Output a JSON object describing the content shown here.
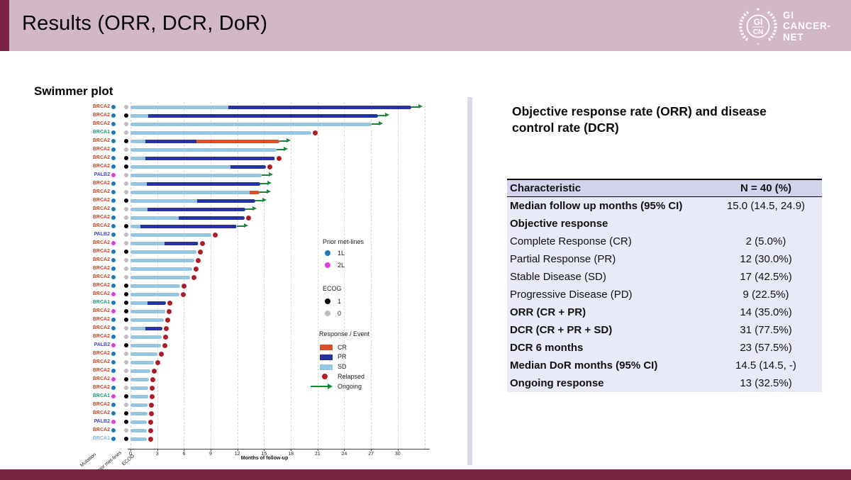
{
  "header": {
    "title": "Results (ORR, DCR, DoR)",
    "logo": {
      "monogram_top": "GI",
      "monogram_bottom": "CN",
      "name_lines": [
        "GI",
        "CANCER-",
        "NET"
      ]
    }
  },
  "swimmer": {
    "section_title": "Swimmer plot",
    "axis_label": "Months of follow-up",
    "column_headers": [
      "Mutation",
      "Prior met-lines",
      "ECOG"
    ],
    "legend": {
      "prior_title": "Prior met-lines",
      "prior_items": [
        {
          "label": "1L",
          "color": "#1f77b4"
        },
        {
          "label": "2L",
          "color": "#e33de3"
        }
      ],
      "ecog_title": "ECOG",
      "ecog_items": [
        {
          "label": "1",
          "color": "#000000"
        },
        {
          "label": "0",
          "color": "#bfbfbf"
        }
      ],
      "response_title": "Response / Event",
      "response_items": [
        {
          "label": "CR",
          "shape": "swatch",
          "color": "#d85128"
        },
        {
          "label": "PR",
          "shape": "swatch",
          "color": "#28329e"
        },
        {
          "label": "SD",
          "shape": "swatch",
          "color": "#95c5e1"
        },
        {
          "label": "Relapsed",
          "shape": "dot",
          "color": "#ab1f26"
        },
        {
          "label": "Ongoing",
          "shape": "arrow",
          "color": "#168a36"
        }
      ]
    }
  },
  "chart_data": {
    "type": "bar",
    "variant": "swimmer-plot",
    "title": "Swimmer plot",
    "xlabel": "Months of follow-up",
    "x_ticks": [
      0,
      3,
      6,
      9,
      12,
      15,
      18,
      21,
      24,
      27,
      30
    ],
    "xlim": [
      0,
      33.5
    ],
    "grid": "dashed-vertical",
    "n_patients": 40,
    "patients": [
      {
        "mutation": "BRCA2",
        "prior": "1L",
        "ecog": "0",
        "segments": [
          {
            "response": "SD",
            "end": 11.0
          },
          {
            "response": "PR",
            "end": 31.5
          }
        ],
        "event": "ongoing"
      },
      {
        "mutation": "BRCA2",
        "prior": "1L",
        "ecog": "1",
        "segments": [
          {
            "response": "SD",
            "end": 2.0
          },
          {
            "response": "PR",
            "end": 27.8
          }
        ],
        "event": "ongoing"
      },
      {
        "mutation": "BRCA2",
        "prior": "1L",
        "ecog": "0",
        "segments": [
          {
            "response": "SD",
            "end": 27.1
          }
        ],
        "event": "ongoing"
      },
      {
        "mutation": "BRCA1",
        "prior": "1L",
        "ecog": "0",
        "segments": [
          {
            "response": "SD",
            "end": 20.3
          }
        ],
        "event": "relapsed"
      },
      {
        "mutation": "BRCA2",
        "prior": "1L",
        "ecog": "1",
        "segments": [
          {
            "response": "SD",
            "end": 1.7
          },
          {
            "response": "PR",
            "end": 7.4
          },
          {
            "response": "CR",
            "end": 16.7
          }
        ],
        "event": "ongoing"
      },
      {
        "mutation": "BRCA2",
        "prior": "1L",
        "ecog": "0",
        "segments": [
          {
            "response": "SD",
            "end": 16.4
          }
        ],
        "event": "ongoing"
      },
      {
        "mutation": "BRCA2",
        "prior": "1L",
        "ecog": "1",
        "segments": [
          {
            "response": "SD",
            "end": 1.7
          },
          {
            "response": "PR",
            "end": 16.2
          }
        ],
        "event": "relapsed"
      },
      {
        "mutation": "BRCA2",
        "prior": "1L",
        "ecog": "1",
        "segments": [
          {
            "response": "SD",
            "end": 11.2
          },
          {
            "response": "PR",
            "end": 15.2
          }
        ],
        "event": "relapsed"
      },
      {
        "mutation": "PALB2",
        "prior": "2L",
        "ecog": "0",
        "segments": [
          {
            "response": "SD",
            "end": 14.7
          }
        ],
        "event": "ongoing"
      },
      {
        "mutation": "BRCA2",
        "prior": "1L",
        "ecog": "0",
        "segments": [
          {
            "response": "SD",
            "end": 1.8
          },
          {
            "response": "PR",
            "end": 14.6
          }
        ],
        "event": "ongoing"
      },
      {
        "mutation": "BRCA2",
        "prior": "1L",
        "ecog": "0",
        "segments": [
          {
            "response": "SD",
            "end": 13.4
          },
          {
            "response": "CR",
            "end": 14.5
          }
        ],
        "event": "ongoing"
      },
      {
        "mutation": "BRCA2",
        "prior": "1L",
        "ecog": "1",
        "segments": [
          {
            "response": "SD",
            "end": 7.5
          },
          {
            "response": "PR",
            "end": 14.0
          }
        ],
        "event": "ongoing"
      },
      {
        "mutation": "BRCA2",
        "prior": "1L",
        "ecog": "0",
        "segments": [
          {
            "response": "SD",
            "end": 1.9
          },
          {
            "response": "PR",
            "end": 12.9
          }
        ],
        "event": "ongoing"
      },
      {
        "mutation": "BRCA2",
        "prior": "1L",
        "ecog": "0",
        "segments": [
          {
            "response": "SD",
            "end": 5.4
          },
          {
            "response": "PR",
            "end": 12.8
          }
        ],
        "event": "relapsed"
      },
      {
        "mutation": "BRCA2",
        "prior": "1L",
        "ecog": "1",
        "segments": [
          {
            "response": "SD",
            "end": 1.1
          },
          {
            "response": "PR",
            "end": 11.9
          }
        ],
        "event": "ongoing"
      },
      {
        "mutation": "PALB2",
        "prior": "1L",
        "ecog": "0",
        "segments": [
          {
            "response": "SD",
            "end": 9.1
          }
        ],
        "event": "relapsed"
      },
      {
        "mutation": "BRCA2",
        "prior": "2L",
        "ecog": "0",
        "segments": [
          {
            "response": "SD",
            "end": 3.8
          },
          {
            "response": "PR",
            "end": 7.6
          }
        ],
        "event": "relapsed"
      },
      {
        "mutation": "BRCA2",
        "prior": "1L",
        "ecog": "1",
        "segments": [
          {
            "response": "SD",
            "end": 7.4
          }
        ],
        "event": "relapsed"
      },
      {
        "mutation": "BRCA2",
        "prior": "1L",
        "ecog": "0",
        "segments": [
          {
            "response": "SD",
            "end": 7.2
          }
        ],
        "event": "relapsed"
      },
      {
        "mutation": "BRCA2",
        "prior": "1L",
        "ecog": "0",
        "segments": [
          {
            "response": "SD",
            "end": 6.9
          }
        ],
        "event": "relapsed"
      },
      {
        "mutation": "BRCA2",
        "prior": "1L",
        "ecog": "0",
        "segments": [
          {
            "response": "SD",
            "end": 6.7
          }
        ],
        "event": "relapsed"
      },
      {
        "mutation": "BRCA2",
        "prior": "1L",
        "ecog": "1",
        "segments": [
          {
            "response": "SD",
            "end": 5.6
          }
        ],
        "event": "relapsed"
      },
      {
        "mutation": "BRCA2",
        "prior": "2L",
        "ecog": "1",
        "segments": [
          {
            "response": "SD",
            "end": 5.5
          }
        ],
        "event": "relapsed"
      },
      {
        "mutation": "BRCA1",
        "prior": "1L",
        "ecog": "1",
        "segments": [
          {
            "response": "SD",
            "end": 1.9
          },
          {
            "response": "PR",
            "end": 4.0
          }
        ],
        "event": "relapsed"
      },
      {
        "mutation": "BRCA2",
        "prior": "2L",
        "ecog": "1",
        "segments": [
          {
            "response": "SD",
            "end": 3.9
          }
        ],
        "event": "relapsed"
      },
      {
        "mutation": "BRCA2",
        "prior": "1L",
        "ecog": "1",
        "segments": [
          {
            "response": "SD",
            "end": 3.7
          }
        ],
        "event": "relapsed"
      },
      {
        "mutation": "BRCA2",
        "prior": "1L",
        "ecog": "0",
        "segments": [
          {
            "response": "SD",
            "end": 1.7
          },
          {
            "response": "PR",
            "end": 3.6
          }
        ],
        "event": "relapsed"
      },
      {
        "mutation": "BRCA2",
        "prior": "1L",
        "ecog": "0",
        "segments": [
          {
            "response": "SD",
            "end": 3.5
          }
        ],
        "event": "relapsed"
      },
      {
        "mutation": "PALB2",
        "prior": "2L",
        "ecog": "1",
        "segments": [
          {
            "response": "SD",
            "end": 3.4
          }
        ],
        "event": "relapsed"
      },
      {
        "mutation": "BRCA2",
        "prior": "1L",
        "ecog": "0",
        "segments": [
          {
            "response": "SD",
            "end": 3.0
          }
        ],
        "event": "relapsed"
      },
      {
        "mutation": "BRCA2",
        "prior": "1L",
        "ecog": "0",
        "segments": [
          {
            "response": "SD",
            "end": 2.6
          }
        ],
        "event": "relapsed"
      },
      {
        "mutation": "BRCA2",
        "prior": "1L",
        "ecog": "0",
        "segments": [
          {
            "response": "SD",
            "end": 2.2
          }
        ],
        "event": "relapsed"
      },
      {
        "mutation": "BRCA2",
        "prior": "2L",
        "ecog": "1",
        "segments": [
          {
            "response": "SD",
            "end": 2.1
          }
        ],
        "event": "relapsed"
      },
      {
        "mutation": "BRCA2",
        "prior": "1L",
        "ecog": "0",
        "segments": [
          {
            "response": "SD",
            "end": 2.0
          }
        ],
        "event": "relapsed"
      },
      {
        "mutation": "BRCA1",
        "prior": "2L",
        "ecog": "1",
        "segments": [
          {
            "response": "SD",
            "end": 2.0
          }
        ],
        "event": "relapsed"
      },
      {
        "mutation": "BRCA2",
        "prior": "1L",
        "ecog": "0",
        "segments": [
          {
            "response": "SD",
            "end": 1.9
          }
        ],
        "event": "relapsed"
      },
      {
        "mutation": "BRCA2",
        "prior": "1L",
        "ecog": "1",
        "segments": [
          {
            "response": "SD",
            "end": 1.9
          }
        ],
        "event": "relapsed"
      },
      {
        "mutation": "PALB2",
        "prior": "2L",
        "ecog": "1",
        "segments": [
          {
            "response": "SD",
            "end": 1.8
          }
        ],
        "event": "relapsed"
      },
      {
        "mutation": "BRCA2",
        "prior": "1L",
        "ecog": "0",
        "segments": [
          {
            "response": "SD",
            "end": 1.8
          }
        ],
        "event": "relapsed"
      },
      {
        "mutation": "BRCA1",
        "muted": true,
        "prior": "1L",
        "ecog": "1",
        "segments": [
          {
            "response": "SD",
            "end": 1.8
          }
        ],
        "event": "relapsed"
      }
    ]
  },
  "panel": {
    "heading": "Objective response rate (ORR) and disease control rate (DCR)",
    "table": {
      "headers": [
        "Characteristic",
        "N = 40 (%)"
      ],
      "rows": [
        {
          "label": "Median follow up months (95% CI)",
          "value": "15.0 (14.5, 24.9)",
          "bold": true
        },
        {
          "label": "Objective response",
          "value": "",
          "bold": true
        },
        {
          "label": "Complete Response (CR)",
          "value": "2 (5.0%)",
          "bold": false
        },
        {
          "label": "Partial Response (PR)",
          "value": "12 (30.0%)",
          "bold": false
        },
        {
          "label": "Stable Disease (SD)",
          "value": "17 (42.5%)",
          "bold": false
        },
        {
          "label": "Progressive Disease (PD)",
          "value": "9 (22.5%)",
          "bold": false
        },
        {
          "label": "ORR (CR + PR)",
          "value": "14 (35.0%)",
          "bold": true
        },
        {
          "label": "DCR (CR + PR + SD)",
          "value": "31 (77.5%)",
          "bold": true
        },
        {
          "label": "DCR 6 months",
          "value": "23 (57.5%)",
          "bold": true
        },
        {
          "label": "Median DoR months (95% CI)",
          "value": "14.5 (14.5, -)",
          "bold": true
        },
        {
          "label": "Ongoing response",
          "value": "13 (32.5%)",
          "bold": true
        }
      ]
    }
  },
  "colors": {
    "header_bg": "#d2b8c6",
    "accent_maroon": "#7a2342",
    "divider": "#d8dce9",
    "table_header_bg": "#d2d4ed",
    "table_body_bg": "#e9eaf7",
    "sd": "#95c5e1",
    "pr": "#28329e",
    "cr": "#d85128",
    "relapsed": "#ab1f26",
    "ongoing": "#168a36",
    "mut_brca2": "#c9452a",
    "mut_brca1": "#189a7b",
    "mut_palb2": "#4545cb",
    "mut_brca1_muted": "#7fb3de",
    "line_1l": "#1f77b4",
    "line_2l": "#e33de3",
    "ecog_1": "#000000",
    "ecog_0": "#bfbfbf",
    "gridline": "#d8d8d8"
  }
}
